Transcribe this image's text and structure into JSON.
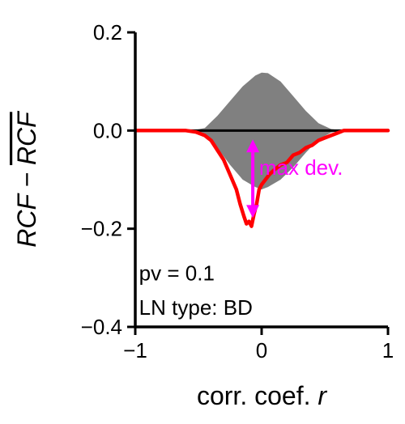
{
  "colors": {
    "band": "#808080",
    "curve": "#ff0000",
    "zero_line": "#000000",
    "arrow": "#ff00ff",
    "axes": "#000000"
  },
  "chart_data": {
    "type": "area",
    "xlabel_text": "corr. coef. ",
    "xlabel_var": "r",
    "ylabel_left": "RCF − ",
    "ylabel_overline": "RCF",
    "xlim": [
      -1,
      1
    ],
    "ylim": [
      -0.4,
      0.2
    ],
    "x_ticks": [
      -1,
      0,
      1
    ],
    "x_tick_labels": [
      "−1",
      "0",
      "1"
    ],
    "y_ticks": [
      0.2,
      0.0,
      -0.2,
      -0.4
    ],
    "y_tick_labels": [
      "0.2",
      "0.0",
      "−0.2",
      "−0.4"
    ],
    "grid": false,
    "zero_line": 0.0,
    "band": {
      "x": [
        -0.55,
        -0.45,
        -0.35,
        -0.25,
        -0.15,
        -0.05,
        0.0,
        0.05,
        0.15,
        0.25,
        0.35,
        0.45,
        0.55,
        0.65
      ],
      "upper": [
        0.0,
        0.005,
        0.03,
        0.06,
        0.09,
        0.112,
        0.118,
        0.117,
        0.1,
        0.07,
        0.04,
        0.015,
        0.003,
        0.0
      ],
      "lower": [
        0.0,
        -0.01,
        -0.035,
        -0.07,
        -0.1,
        -0.115,
        -0.12,
        -0.115,
        -0.1,
        -0.075,
        -0.045,
        -0.018,
        -0.004,
        0.0
      ]
    },
    "series": [
      {
        "x": [
          -1.0,
          -0.6,
          -0.52,
          -0.45,
          -0.4,
          -0.35,
          -0.3,
          -0.25,
          -0.2,
          -0.17,
          -0.14,
          -0.12,
          -0.1,
          -0.08,
          -0.06,
          -0.04,
          -0.02,
          0.0,
          0.03,
          0.06,
          0.1,
          0.15,
          0.2,
          0.25,
          0.3,
          0.35,
          0.4,
          0.45,
          0.5,
          0.55,
          0.6,
          0.65,
          1.0
        ],
        "y": [
          0.0,
          0.0,
          -0.003,
          -0.01,
          -0.02,
          -0.04,
          -0.06,
          -0.09,
          -0.12,
          -0.15,
          -0.175,
          -0.19,
          -0.185,
          -0.195,
          -0.17,
          -0.15,
          -0.12,
          -0.11,
          -0.1,
          -0.09,
          -0.08,
          -0.07,
          -0.065,
          -0.05,
          -0.045,
          -0.035,
          -0.03,
          -0.02,
          -0.015,
          -0.01,
          -0.005,
          0.0,
          0.0
        ]
      }
    ],
    "arrow": {
      "x": -0.07,
      "y_top": -0.018,
      "y_bottom": -0.178
    },
    "annotations": {
      "max_dev": {
        "text": "max dev.",
        "x": -0.02,
        "y": -0.09
      },
      "pv": {
        "text": "pv = 0.1",
        "x": -0.97,
        "y": -0.305
      },
      "ln_type": {
        "text": "LN type: BD",
        "x": -0.97,
        "y": -0.375
      }
    }
  }
}
